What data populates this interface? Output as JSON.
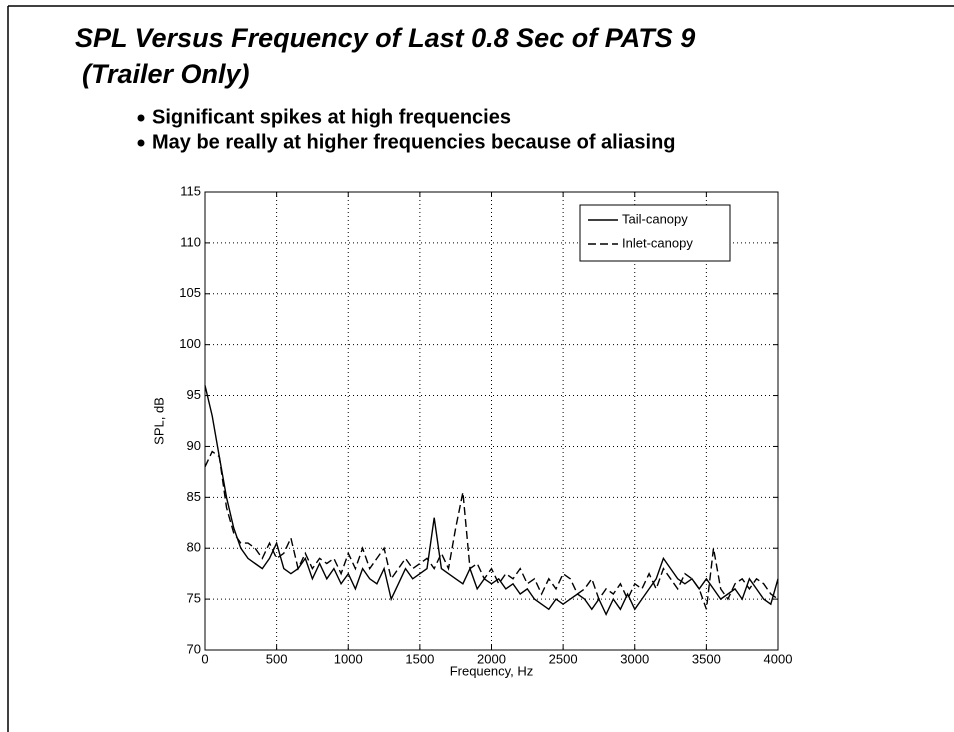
{
  "title": [
    "SPL Versus Frequency of Last 0.8 Sec of PATS 9",
    "(Trailer Only)"
  ],
  "bullets": [
    "Significant spikes at high frequencies",
    "May be really at higher frequencies because of aliasing"
  ],
  "chart_data": {
    "type": "line",
    "xlabel": "Frequency, Hz",
    "ylabel": "SPL, dB",
    "x": [
      0,
      50,
      100,
      150,
      200,
      250,
      300,
      350,
      400,
      450,
      500,
      550,
      600,
      650,
      700,
      750,
      800,
      850,
      900,
      950,
      1000,
      1050,
      1100,
      1150,
      1200,
      1250,
      1300,
      1350,
      1400,
      1450,
      1500,
      1550,
      1600,
      1650,
      1700,
      1750,
      1800,
      1850,
      1900,
      1950,
      2000,
      2050,
      2100,
      2150,
      2200,
      2250,
      2300,
      2350,
      2400,
      2450,
      2500,
      2550,
      2600,
      2650,
      2700,
      2750,
      2800,
      2850,
      2900,
      2950,
      3000,
      3050,
      3100,
      3150,
      3200,
      3250,
      3300,
      3350,
      3400,
      3450,
      3500,
      3550,
      3600,
      3650,
      3700,
      3750,
      3800,
      3850,
      3900,
      3950,
      4000
    ],
    "series": [
      {
        "name": "Tail-canopy",
        "color": "#000000",
        "dash": "solid",
        "values": [
          96,
          93,
          89,
          85,
          82,
          80,
          79,
          78.5,
          78,
          79,
          80.5,
          78,
          77.5,
          78,
          79,
          77,
          78.5,
          77,
          78,
          76.5,
          77.5,
          76,
          78,
          77,
          76.5,
          78,
          75,
          76.5,
          78,
          77,
          77.5,
          78,
          83,
          78,
          77.5,
          77,
          76.5,
          78,
          76,
          77,
          76.5,
          77,
          76,
          76.5,
          75.5,
          76,
          75,
          74.5,
          74,
          75,
          74.5,
          75,
          75.5,
          75,
          74,
          75,
          73.5,
          75,
          74,
          75.5,
          74,
          75,
          76,
          77,
          79,
          78,
          77,
          76.5,
          77,
          76,
          77,
          76,
          75,
          75.5,
          76,
          75,
          77,
          76,
          75,
          74.5,
          77
        ]
      },
      {
        "name": "Inlet-canopy",
        "color": "#000000",
        "dash": "dashed",
        "values": [
          88,
          89.5,
          89,
          84,
          81.5,
          80.5,
          80.5,
          80,
          79,
          80.5,
          79,
          79.5,
          81,
          78,
          79.5,
          78,
          79,
          78.5,
          79,
          77.5,
          79.5,
          78,
          80,
          78,
          79,
          80,
          77,
          78,
          79,
          78,
          78.5,
          79,
          78,
          79.5,
          78,
          82,
          85.5,
          78,
          78.5,
          77,
          78,
          76.5,
          77.5,
          77,
          78,
          76.5,
          77,
          75.5,
          77,
          76,
          77.5,
          77,
          75.5,
          76,
          77,
          75,
          76,
          75.5,
          76.5,
          75,
          76.5,
          76,
          77.5,
          76,
          78,
          77,
          76,
          77.5,
          77,
          76,
          74,
          80,
          76,
          75,
          76.5,
          77,
          76,
          77,
          76.5,
          75.5,
          75
        ]
      }
    ],
    "xlim": [
      0,
      4000
    ],
    "xticks": [
      0,
      500,
      1000,
      1500,
      2000,
      2500,
      3000,
      3500,
      4000
    ],
    "ylim": [
      70,
      115
    ],
    "yticks": [
      70,
      75,
      80,
      85,
      90,
      95,
      100,
      105,
      110,
      115
    ],
    "grid": true,
    "legend": "upper right"
  }
}
